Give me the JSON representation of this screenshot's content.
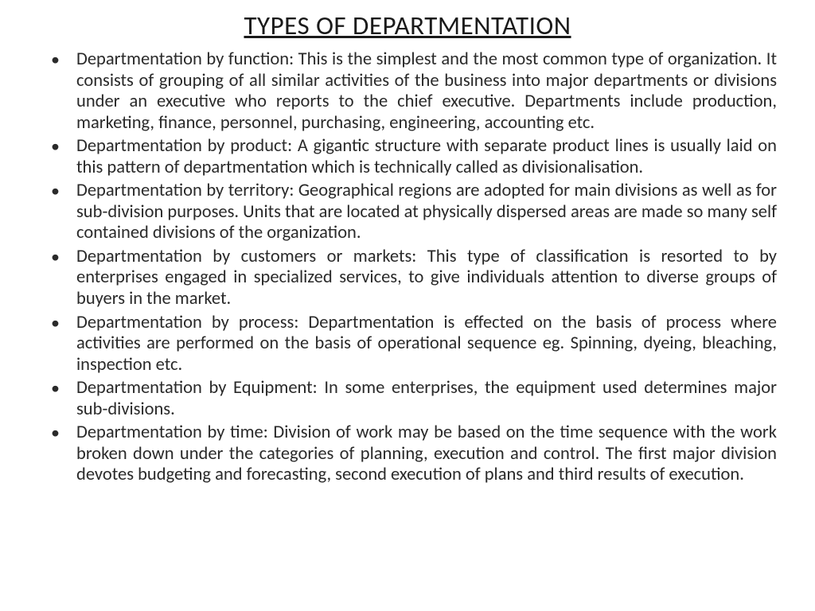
{
  "title": "TYPES OF DEPARTMENTATION",
  "items": [
    "Departmentation by function: This is the simplest and the most common type of organization. It consists of grouping of all similar activities of the business into major departments or divisions under an executive who reports to the chief executive. Departments include production, marketing, finance, personnel, purchasing, engineering, accounting etc.",
    "Departmentation by product: A gigantic structure with separate product lines is usually laid on this pattern of departmentation which is technically called as divisionalisation.",
    "Departmentation by territory: Geographical regions are adopted for main divisions as well as for sub-division purposes. Units that are located at physically dispersed areas are made so many self contained divisions of the organization.",
    "Departmentation by customers or markets: This type of classification is resorted to by enterprises engaged in specialized services, to give individuals attention to diverse groups of buyers in the market.",
    "Departmentation by process: Departmentation is effected on the basis of process where activities are performed on the basis of operational sequence eg. Spinning, dyeing, bleaching, inspection etc.",
    "Departmentation by Equipment: In some enterprises, the equipment used determines major sub-divisions.",
    "Departmentation by time: Division of work may be based on the time sequence with the work broken down under the categories of planning, execution and control. The first major division devotes budgeting and forecasting, second execution of plans and third  results of execution."
  ],
  "styling": {
    "background_color": "#ffffff",
    "text_color": "#1a1a1a",
    "title_fontsize": 33,
    "body_fontsize": 22.5,
    "font_family": "Calibri",
    "bullet_char": "•",
    "title_underline": true,
    "text_align": "justify",
    "line_height": 1.18
  }
}
